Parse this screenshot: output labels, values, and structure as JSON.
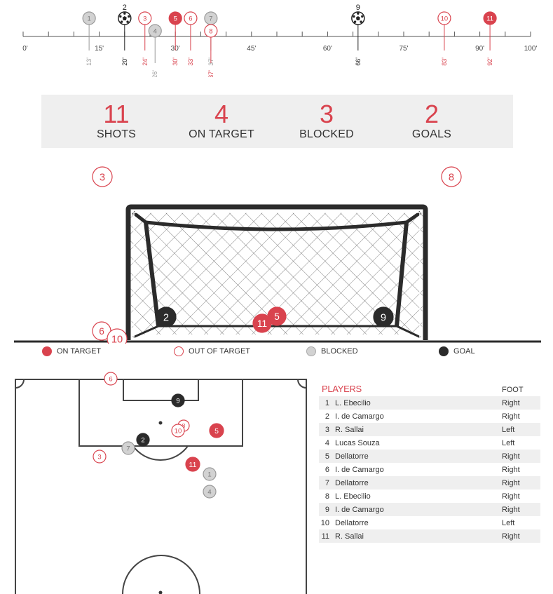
{
  "colors": {
    "on_target": "#d9434e",
    "out_of_target": "#d9434e",
    "blocked": "#d2d2d2",
    "goal": "#2b2b2b",
    "panel": "#efefef"
  },
  "timeline": {
    "ticks": [
      "0'",
      "15'",
      "30'",
      "45'",
      "60'",
      "75'",
      "90'",
      "100'"
    ],
    "events": [
      {
        "n": "1",
        "minute": 13,
        "minute_label": "13'",
        "type": "blocked"
      },
      {
        "n": "2",
        "minute": 20,
        "minute_label": "20'",
        "type": "goal"
      },
      {
        "n": "3",
        "minute": 24,
        "minute_label": "24'",
        "type": "out"
      },
      {
        "n": "4",
        "minute": 26,
        "minute_label": "26'",
        "type": "blocked"
      },
      {
        "n": "5",
        "minute": 30,
        "minute_label": "30'",
        "type": "on"
      },
      {
        "n": "6",
        "minute": 33,
        "minute_label": "33'",
        "type": "out"
      },
      {
        "n": "7",
        "minute": 37,
        "minute_label": "37'",
        "type": "blocked"
      },
      {
        "n": "8",
        "minute": 37,
        "minute_label": "37'",
        "type": "out"
      },
      {
        "n": "9",
        "minute": 66,
        "minute_label": "66'",
        "type": "goal"
      },
      {
        "n": "10",
        "minute": 83,
        "minute_label": "83'",
        "type": "out"
      },
      {
        "n": "11",
        "minute": 92,
        "minute_label": "92'",
        "type": "on"
      }
    ]
  },
  "stats": {
    "shots": {
      "value": "11",
      "label": "SHOTS"
    },
    "on_target": {
      "value": "4",
      "label": "ON TARGET"
    },
    "blocked": {
      "value": "3",
      "label": "BLOCKED"
    },
    "goals": {
      "value": "2",
      "label": "GOALS"
    }
  },
  "goal_view_markers": [
    {
      "n": "3",
      "type": "out"
    },
    {
      "n": "8",
      "type": "out"
    },
    {
      "n": "2",
      "type": "goal"
    },
    {
      "n": "9",
      "type": "goal"
    },
    {
      "n": "5",
      "type": "on"
    },
    {
      "n": "11",
      "type": "on"
    },
    {
      "n": "6",
      "type": "out"
    },
    {
      "n": "10",
      "type": "out"
    }
  ],
  "legend": {
    "on_target": "ON TARGET",
    "out_of_target": "OUT OF TARGET",
    "blocked": "BLOCKED",
    "goal": "GOAL"
  },
  "pitch_markers": [
    {
      "n": "6",
      "type": "out"
    },
    {
      "n": "9",
      "type": "goal"
    },
    {
      "n": "8",
      "type": "out"
    },
    {
      "n": "10",
      "type": "out"
    },
    {
      "n": "5",
      "type": "on"
    },
    {
      "n": "2",
      "type": "goal"
    },
    {
      "n": "7",
      "type": "blocked"
    },
    {
      "n": "3",
      "type": "out"
    },
    {
      "n": "11",
      "type": "on"
    },
    {
      "n": "1",
      "type": "blocked"
    },
    {
      "n": "4",
      "type": "blocked"
    }
  ],
  "players": {
    "title": "PLAYERS",
    "foot_header": "FOOT",
    "rows": [
      {
        "n": "1",
        "name": "L. Ebecilio",
        "foot": "Right"
      },
      {
        "n": "2",
        "name": "I. de Camargo",
        "foot": "Right"
      },
      {
        "n": "3",
        "name": "R. Sallai",
        "foot": "Left"
      },
      {
        "n": "4",
        "name": "Lucas Souza",
        "foot": "Left"
      },
      {
        "n": "5",
        "name": "Dellatorre",
        "foot": "Right"
      },
      {
        "n": "6",
        "name": "I. de Camargo",
        "foot": "Right"
      },
      {
        "n": "7",
        "name": "Dellatorre",
        "foot": "Right"
      },
      {
        "n": "8",
        "name": "L. Ebecilio",
        "foot": "Right"
      },
      {
        "n": "9",
        "name": "I. de Camargo",
        "foot": "Right"
      },
      {
        "n": "10",
        "name": "Dellatorre",
        "foot": "Left"
      },
      {
        "n": "11",
        "name": "R. Sallai",
        "foot": "Right"
      }
    ]
  }
}
